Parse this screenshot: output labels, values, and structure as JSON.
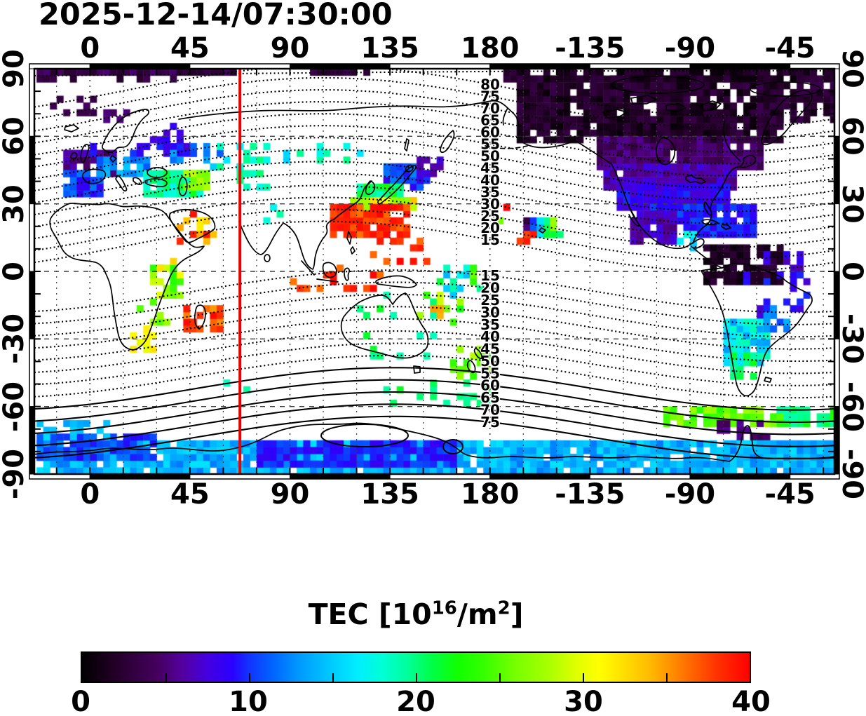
{
  "title": "2025-12-14/07:30:00",
  "axes": {
    "x_tick_labels": [
      "0",
      "45",
      "90",
      "135",
      "180",
      "-135",
      "-90",
      "-45"
    ],
    "x_tick_lons": [
      0,
      45,
      90,
      135,
      180,
      225,
      270,
      315
    ],
    "y_tick_labels": [
      "90",
      "60",
      "30",
      "0",
      "-30",
      "-60",
      "-90"
    ],
    "y_tick_lats": [
      90,
      60,
      30,
      0,
      -30,
      -60,
      -90
    ]
  },
  "chart_data": {
    "type": "heatmap",
    "title": "2025-12-14/07:30:00",
    "projection": "geographic lon/lat map",
    "lon_range": [
      -25,
      335
    ],
    "lat_range": [
      -90,
      90
    ],
    "grid": "dashed, 15 deg lon / 30 deg lat",
    "red_line_lon": 67.5,
    "red_line_color": "#ee0000",
    "colorbar": {
      "title_prefix": "TEC  [10",
      "title_sup1": "16",
      "title_mid": "/m",
      "title_sup2": "2",
      "title_suffix": "]",
      "min": 0,
      "max": 40,
      "tick_labels": [
        "0",
        "10",
        "20",
        "30",
        "40"
      ],
      "minor_ticks": [
        5,
        10,
        15,
        20,
        25,
        30,
        35
      ]
    },
    "colormap_stops": [
      [
        0,
        "#000000"
      ],
      [
        2,
        "#240028"
      ],
      [
        4.5,
        "#45005e"
      ],
      [
        6,
        "#54009e"
      ],
      [
        7.5,
        "#4400e0"
      ],
      [
        9,
        "#2a00ff"
      ],
      [
        10,
        "#1133ff"
      ],
      [
        11.5,
        "#0066ff"
      ],
      [
        13,
        "#0099ff"
      ],
      [
        15,
        "#00ccff"
      ],
      [
        16.5,
        "#00eeff"
      ],
      [
        18,
        "#00ffd5"
      ],
      [
        19.5,
        "#00ff99"
      ],
      [
        21,
        "#00ff44"
      ],
      [
        22.5,
        "#11ff00"
      ],
      [
        24,
        "#33ff00"
      ],
      [
        26,
        "#77ff00"
      ],
      [
        28,
        "#aaff00"
      ],
      [
        29.5,
        "#ddff00"
      ],
      [
        31,
        "#ffff00"
      ],
      [
        32.5,
        "#ffdd00"
      ],
      [
        34,
        "#ffbb00"
      ],
      [
        35,
        "#ff9900"
      ],
      [
        36.5,
        "#ff6600"
      ],
      [
        38,
        "#ff3300"
      ],
      [
        40,
        "#ff0000"
      ]
    ],
    "contours": {
      "comment": "magnetic-latitude style contours, labels placed near lon 180",
      "north_levels": [
        80,
        75,
        70,
        65,
        60,
        55,
        50,
        45,
        40,
        35,
        30,
        25,
        20,
        15
      ],
      "south_levels": [
        15,
        20,
        25,
        30,
        35,
        40,
        45,
        50,
        55,
        60,
        65,
        70,
        75
      ],
      "south_solid_from": 55
    },
    "tec_clusters": [
      {
        "n": "arctic-band",
        "lon": [
          -24,
          66
        ],
        "lat": [
          87,
          90
        ],
        "v": [
          2,
          5
        ],
        "d": 1.0
      },
      {
        "n": "arctic-band2",
        "lon": [
          -24,
          40
        ],
        "lat": [
          84,
          87
        ],
        "v": [
          2,
          4
        ],
        "d": 0.3
      },
      {
        "n": "arctic-east",
        "lon": [
          100,
          126
        ],
        "lat": [
          87,
          90
        ],
        "v": [
          2,
          4
        ],
        "d": 0.7
      },
      {
        "n": "arctic-west-top",
        "lon": [
          186,
          335
        ],
        "lat": [
          85,
          90
        ],
        "v": [
          0.5,
          3
        ],
        "d": 0.75
      },
      {
        "n": "arctic-spots-left",
        "lon": [
          -21,
          1
        ],
        "lat": [
          69,
          76
        ],
        "v": [
          3,
          5
        ],
        "d": 0.35
      },
      {
        "n": "na-black",
        "lon": [
          192,
          312
        ],
        "lat": [
          57,
          85
        ],
        "v": [
          0.5,
          3.5
        ],
        "d": 0.88
      },
      {
        "n": "greenland",
        "lon": [
          300,
          335
        ],
        "lat": [
          68,
          85
        ],
        "v": [
          1,
          4
        ],
        "d": 0.8
      },
      {
        "n": "na-darkpurple",
        "lon": [
          228,
          302
        ],
        "lat": [
          46,
          58
        ],
        "v": [
          3,
          6
        ],
        "d": 0.95
      },
      {
        "n": "na-purpleblue",
        "lon": [
          232,
          290
        ],
        "lat": [
          37,
          47
        ],
        "v": [
          5,
          8
        ],
        "d": 0.97
      },
      {
        "n": "na-blue",
        "lon": [
          238,
          288
        ],
        "lat": [
          27,
          38
        ],
        "v": [
          7,
          10
        ],
        "d": 0.97
      },
      {
        "n": "na-blue-south",
        "lon": [
          252,
          298
        ],
        "lat": [
          17,
          28
        ],
        "v": [
          8,
          11
        ],
        "d": 0.88
      },
      {
        "n": "mexico-purple",
        "lon": [
          243,
          263
        ],
        "lat": [
          14,
          26
        ],
        "v": [
          5,
          8
        ],
        "d": 0.8
      },
      {
        "n": "carib-cyan",
        "lon": [
          262,
          272
        ],
        "lat": [
          11,
          16
        ],
        "v": [
          14,
          18
        ],
        "d": 0.5
      },
      {
        "n": "sa-black",
        "lon": [
          277,
          311
        ],
        "lat": [
          -6,
          12
        ],
        "v": [
          0.5,
          3
        ],
        "d": 0.85
      },
      {
        "n": "sa-navy",
        "lon": [
          295,
          322
        ],
        "lat": [
          -17,
          -2
        ],
        "v": [
          7,
          10
        ],
        "d": 0.3
      },
      {
        "n": "sa-navy2",
        "lon": [
          303,
          320
        ],
        "lat": [
          -2,
          8
        ],
        "v": [
          6,
          9
        ],
        "d": 0.25
      },
      {
        "n": "sa-purple-sparse",
        "lon": [
          300,
          315
        ],
        "lat": [
          -25,
          -12
        ],
        "v": [
          4,
          8
        ],
        "d": 0.18
      },
      {
        "n": "sa-cyangreen",
        "lon": [
          286,
          306
        ],
        "lat": [
          -40,
          -22
        ],
        "v": [
          13,
          19
        ],
        "d": 0.92
      },
      {
        "n": "sa-green",
        "lon": [
          288,
          300
        ],
        "lat": [
          -48,
          -38
        ],
        "v": [
          19,
          23
        ],
        "d": 0.7
      },
      {
        "n": "sa-cyan-east",
        "lon": [
          304,
          314
        ],
        "lat": [
          -26,
          -16
        ],
        "v": [
          9,
          14
        ],
        "d": 0.35
      },
      {
        "n": "peninsula-yellowgreen",
        "lon": [
          258,
          311
        ],
        "lat": [
          -68,
          -61
        ],
        "v": [
          23,
          28
        ],
        "d": 0.85
      },
      {
        "n": "peninsula-green-east",
        "lon": [
          311,
          335
        ],
        "lat": [
          -68,
          -61
        ],
        "v": [
          19,
          24
        ],
        "d": 0.8
      },
      {
        "n": "peninsula-darkpurple",
        "lon": [
          283,
          306
        ],
        "lat": [
          -73,
          -68
        ],
        "v": [
          3,
          6
        ],
        "d": 0.55
      },
      {
        "n": "antarctic-band",
        "lon": [
          -24,
          335
        ],
        "lat": [
          -90,
          -75
        ],
        "v": [
          12,
          16
        ],
        "d": 0.93
      },
      {
        "n": "antarctic-blue-center",
        "lon": [
          75,
          165
        ],
        "lat": [
          -86,
          -75
        ],
        "v": [
          8,
          11
        ],
        "d": 0.9
      },
      {
        "n": "antarctic-blue-left",
        "lon": [
          -24,
          30
        ],
        "lat": [
          -82,
          -74
        ],
        "v": [
          9,
          12
        ],
        "d": 0.85
      },
      {
        "n": "antarctic-cyan-left",
        "lon": [
          -24,
          10
        ],
        "lat": [
          -73,
          -68
        ],
        "v": [
          13,
          16
        ],
        "d": 0.4
      },
      {
        "n": "southern-green-aus",
        "lon": [
          150,
          178
        ],
        "lat": [
          -62,
          -50
        ],
        "v": [
          19,
          22
        ],
        "d": 0.22
      },
      {
        "n": "southern-green-aus2",
        "lon": [
          128,
          148
        ],
        "lat": [
          -58,
          -52
        ],
        "v": [
          19,
          22
        ],
        "d": 0.12
      },
      {
        "n": "s-indian-green",
        "lon": [
          52,
          96
        ],
        "lat": [
          -56,
          -46
        ],
        "v": [
          16,
          20
        ],
        "d": 0.1
      },
      {
        "n": "europe-darkpurple",
        "lon": [
          -11,
          11
        ],
        "lat": [
          42,
          53
        ],
        "v": [
          4,
          7
        ],
        "d": 0.9
      },
      {
        "n": "uk-blue",
        "lon": [
          -6,
          3
        ],
        "lat": [
          50,
          56
        ],
        "v": [
          8,
          10
        ],
        "d": 0.5
      },
      {
        "n": "spain-blue",
        "lon": [
          -10,
          4
        ],
        "lat": [
          35,
          44
        ],
        "v": [
          8,
          12
        ],
        "d": 0.85
      },
      {
        "n": "europe-cyan",
        "lon": [
          4,
          26
        ],
        "lat": [
          42,
          51
        ],
        "v": [
          11,
          15
        ],
        "d": 0.85
      },
      {
        "n": "europe-blue-east",
        "lon": [
          18,
          46
        ],
        "lat": [
          51,
          59
        ],
        "v": [
          7,
          10
        ],
        "d": 0.5
      },
      {
        "n": "europe-cyan-east",
        "lon": [
          36,
          58
        ],
        "lat": [
          48,
          56
        ],
        "v": [
          10,
          14
        ],
        "d": 0.3
      },
      {
        "n": "scandinavia-purple",
        "lon": [
          7,
          18
        ],
        "lat": [
          66,
          71
        ],
        "v": [
          4,
          6
        ],
        "d": 0.5
      },
      {
        "n": "scandinavia-blue",
        "lon": [
          24,
          42
        ],
        "lat": [
          59,
          66
        ],
        "v": [
          7,
          9
        ],
        "d": 0.3
      },
      {
        "n": "mideast-green",
        "lon": [
          25,
          49
        ],
        "lat": [
          35,
          45
        ],
        "v": [
          17,
          22
        ],
        "d": 0.9
      },
      {
        "n": "caspian-yellow",
        "lon": [
          44,
          54
        ],
        "lat": [
          37,
          43
        ],
        "v": [
          25,
          29
        ],
        "d": 0.65
      },
      {
        "n": "arabia-red",
        "lon": [
          41,
          57
        ],
        "lat": [
          13,
          27
        ],
        "v": [
          31,
          40
        ],
        "d": 0.3
      },
      {
        "n": "centralasia-green",
        "lon": [
          63,
          84
        ],
        "lat": [
          36,
          50
        ],
        "v": [
          17,
          21
        ],
        "d": 0.4
      },
      {
        "n": "siberia-green",
        "lon": [
          56,
          104
        ],
        "lat": [
          47,
          57
        ],
        "v": [
          15,
          20
        ],
        "d": 0.3
      },
      {
        "n": "baikal-green",
        "lon": [
          104,
          122
        ],
        "lat": [
          48,
          56
        ],
        "v": [
          16,
          20
        ],
        "d": 0.28
      },
      {
        "n": "india-green",
        "lon": [
          80,
          90
        ],
        "lat": [
          22,
          32
        ],
        "v": [
          17,
          20
        ],
        "d": 0.15
      },
      {
        "n": "japan-blue",
        "lon": [
          134,
          152
        ],
        "lat": [
          36,
          47
        ],
        "v": [
          8,
          13
        ],
        "d": 0.9
      },
      {
        "n": "japan-deepblue",
        "lon": [
          148,
          157
        ],
        "lat": [
          43,
          49
        ],
        "v": [
          6,
          8
        ],
        "d": 0.8
      },
      {
        "n": "korea-green",
        "lon": [
          120,
          140
        ],
        "lat": [
          32,
          38
        ],
        "v": [
          18,
          23
        ],
        "d": 0.95
      },
      {
        "n": "eastasia-yellow",
        "lon": [
          118,
          146
        ],
        "lat": [
          29,
          33
        ],
        "v": [
          26,
          31
        ],
        "d": 0.9
      },
      {
        "n": "eastasia-orange",
        "lon": [
          126,
          150
        ],
        "lat": [
          27,
          31
        ],
        "v": [
          30,
          34
        ],
        "d": 0.55
      },
      {
        "n": "eastasia-red",
        "lon": [
          110,
          143
        ],
        "lat": [
          17,
          28
        ],
        "v": [
          36,
          40
        ],
        "d": 0.92
      },
      {
        "n": "philippine-red",
        "lon": [
          128,
          152
        ],
        "lat": [
          3,
          15
        ],
        "v": [
          36,
          40
        ],
        "d": 0.28
      },
      {
        "n": "indonesia-red",
        "lon": [
          92,
          138
        ],
        "lat": [
          -9,
          2
        ],
        "v": [
          36,
          40
        ],
        "d": 0.25
      },
      {
        "n": "pacific-eq-green",
        "lon": [
          158,
          176
        ],
        "lat": [
          -12,
          3
        ],
        "v": [
          14,
          26
        ],
        "d": 0.4
      },
      {
        "n": "hawaii-gradient",
        "lon": [
          197,
          208
        ],
        "lat": [
          16,
          23
        ],
        "v": [
          8,
          28
        ],
        "d": 1.0,
        "g": 1
      },
      {
        "n": "hawaii-red",
        "lon": [
          193,
          199
        ],
        "lat": [
          13,
          16
        ],
        "v": [
          37,
          40
        ],
        "d": 0.9
      },
      {
        "n": "hawaii-green-sq",
        "lon": [
          208,
          211
        ],
        "lat": [
          15,
          18
        ],
        "v": [
          20,
          22
        ],
        "d": 1.0
      },
      {
        "n": "pacific-red-dots",
        "lon": [
          186,
          191
        ],
        "lat": [
          25,
          29
        ],
        "v": [
          37,
          40
        ],
        "d": 0.5
      },
      {
        "n": "pacific-green-dot",
        "lon": [
          183,
          186
        ],
        "lat": [
          19,
          22
        ],
        "v": [
          24,
          26
        ],
        "d": 0.6
      },
      {
        "n": "africa-eq-mix",
        "lon": [
          28,
          42
        ],
        "lat": [
          -12,
          2
        ],
        "v": [
          23,
          31
        ],
        "d": 0.55
      },
      {
        "n": "africa-orange-spots",
        "lon": [
          30,
          40
        ],
        "lat": [
          0,
          4
        ],
        "v": [
          30,
          33
        ],
        "d": 0.3
      },
      {
        "n": "safrica-orange",
        "lon": [
          19,
          30
        ],
        "lat": [
          -35,
          -26
        ],
        "v": [
          29,
          33
        ],
        "d": 0.5
      },
      {
        "n": "safrica-yellowgreen",
        "lon": [
          23,
          34
        ],
        "lat": [
          -22,
          -13
        ],
        "v": [
          24,
          28
        ],
        "d": 0.28
      },
      {
        "n": "madagascar-red",
        "lon": [
          43,
          59
        ],
        "lat": [
          -27,
          -16
        ],
        "v": [
          35,
          40
        ],
        "d": 0.7
      },
      {
        "n": "australia-green",
        "lon": [
          113,
          154
        ],
        "lat": [
          -37,
          -11
        ],
        "v": [
          18,
          22
        ],
        "d": 0.16
      },
      {
        "n": "coralsea-mix",
        "lon": [
          146,
          166
        ],
        "lat": [
          -22,
          -9
        ],
        "v": [
          20,
          29
        ],
        "d": 0.45
      },
      {
        "n": "coralsea-red",
        "lon": [
          153,
          158
        ],
        "lat": [
          -19,
          -15
        ],
        "v": [
          32,
          35
        ],
        "d": 0.6
      },
      {
        "n": "newzealand-yellow",
        "lon": [
          164,
          179
        ],
        "lat": [
          -48,
          -34
        ],
        "v": [
          23,
          29
        ],
        "d": 0.5
      }
    ]
  }
}
